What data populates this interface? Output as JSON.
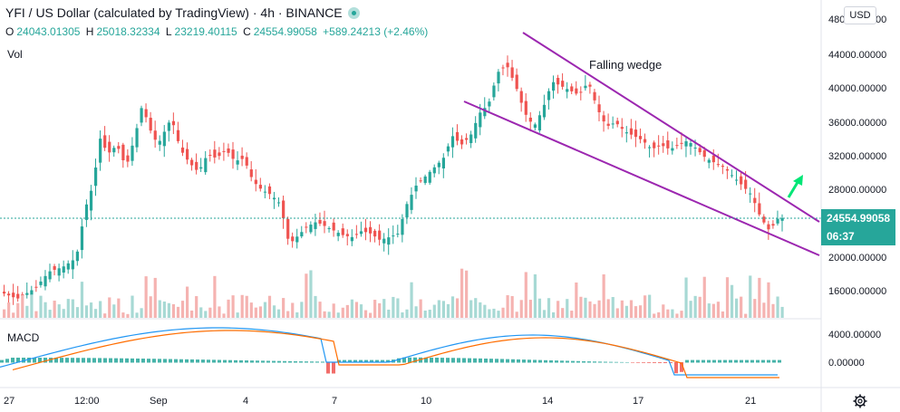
{
  "header": {
    "title": "YFI / US Dollar (calculated by TradingView) · 4h · BINANCE",
    "ohlc": {
      "open_label": "O",
      "open": "24043.01305",
      "high_label": "H",
      "high": "25018.32334",
      "low_label": "L",
      "low": "23219.40115",
      "close_label": "C",
      "close": "24554.99058",
      "change": "+589.24213 (+2.46%)"
    }
  },
  "panes": {
    "volume_label": "Vol",
    "macd_label": "MACD"
  },
  "currency_button": "USD",
  "last_price": {
    "value": "24554.99058",
    "countdown": "06:37"
  },
  "annotation": "Falling wedge",
  "colors": {
    "up": "#26a69a",
    "down": "#ef5350",
    "wedge": "#9c27b0",
    "arrow": "#00e676",
    "macd_line": "#2196f3",
    "signal_line": "#ff6d00"
  },
  "price_axis": {
    "ticks": [
      "48000.00000",
      "44000.00000",
      "40000.00000",
      "36000.00000",
      "32000.00000",
      "28000.00000",
      "20000.00000",
      "16000.00000"
    ]
  },
  "macd_axis": {
    "ticks": [
      "4000.00000",
      "0.00000"
    ]
  },
  "time_axis": {
    "ticks": [
      "27",
      "12:00",
      "Sep",
      "4",
      "7",
      "10",
      "14",
      "17",
      "21"
    ]
  },
  "icons": {
    "settings": "gear-icon",
    "live": "live-dot-icon"
  }
}
